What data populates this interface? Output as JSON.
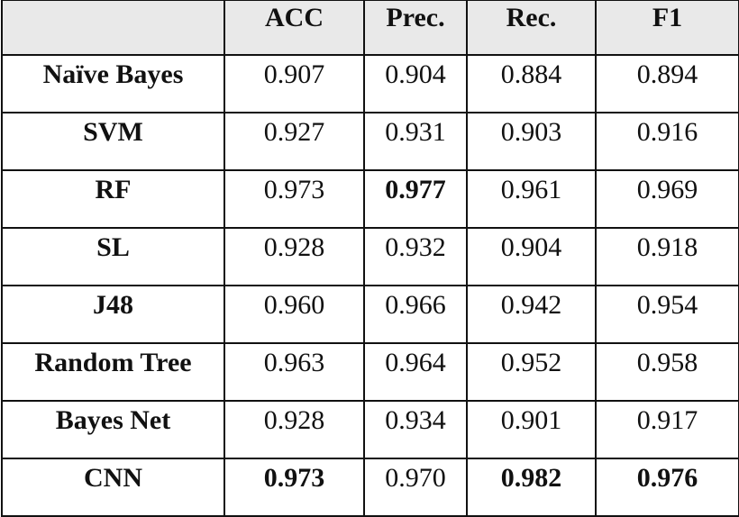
{
  "table": {
    "columns": [
      "ACC",
      "Prec.",
      "Rec.",
      "F1"
    ],
    "rows": [
      {
        "label": "Naïve Bayes",
        "cells": [
          "0.907",
          "0.904",
          "0.884",
          "0.894"
        ]
      },
      {
        "label": "SVM",
        "cells": [
          "0.927",
          "0.931",
          "0.903",
          "0.916"
        ]
      },
      {
        "label": "RF",
        "cells": [
          "0.973",
          "0.977",
          "0.961",
          "0.969"
        ]
      },
      {
        "label": "SL",
        "cells": [
          "0.928",
          "0.932",
          "0.904",
          "0.918"
        ]
      },
      {
        "label": "J48",
        "cells": [
          "0.960",
          "0.966",
          "0.942",
          "0.954"
        ]
      },
      {
        "label": "Random Tree",
        "cells": [
          "0.963",
          "0.964",
          "0.952",
          "0.958"
        ]
      },
      {
        "label": "Bayes Net",
        "cells": [
          "0.928",
          "0.934",
          "0.901",
          "0.917"
        ]
      },
      {
        "label": "CNN",
        "cells": [
          "0.973",
          "0.970",
          "0.982",
          "0.976"
        ]
      }
    ],
    "bold_cells": [
      {
        "row": 2,
        "col": 1
      },
      {
        "row": 7,
        "col": 0
      },
      {
        "row": 7,
        "col": 2
      },
      {
        "row": 7,
        "col": 3
      }
    ]
  }
}
